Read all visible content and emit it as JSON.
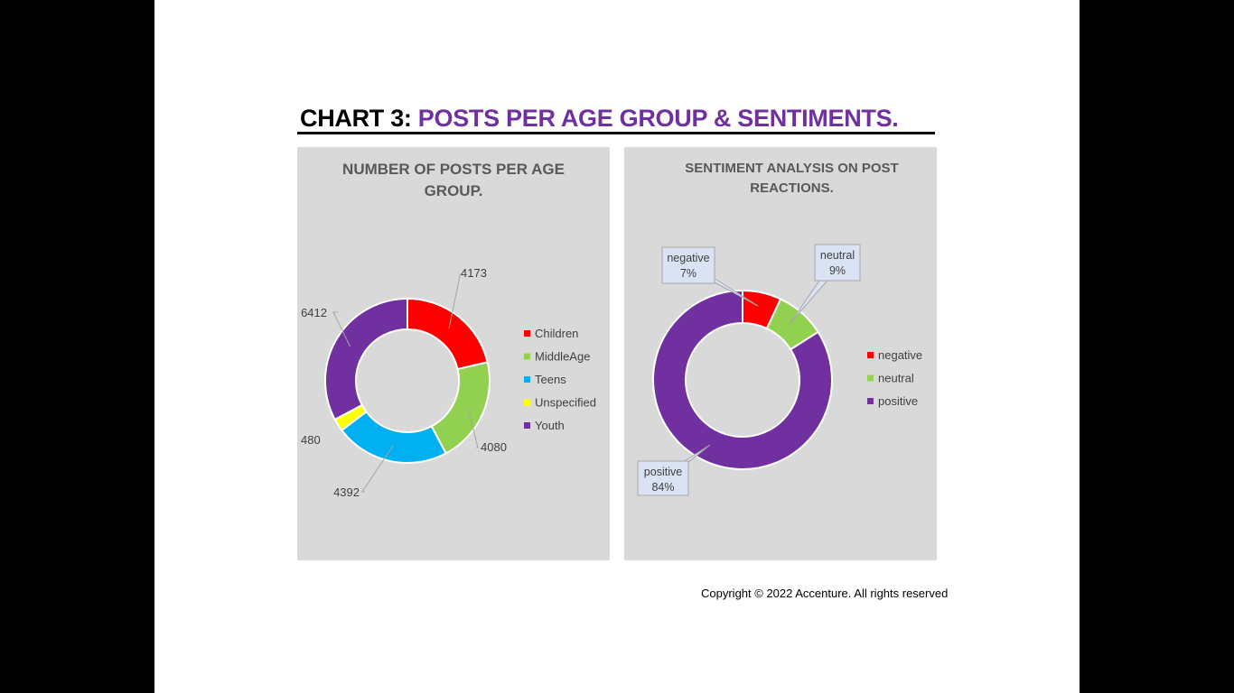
{
  "slide": {
    "title_prefix": "CHART 3:",
    "title_accent": " POSTS PER AGE GROUP & SENTIMENTS.",
    "copyright": "Copyright © 2022 Accenture.  All rights reserved"
  },
  "colors": {
    "title_accent": "#7030a0",
    "panel_bg": "#d9d9d9",
    "children": "#ff0000",
    "middleage": "#92d050",
    "teens": "#00b0f0",
    "unspecified": "#ffff00",
    "youth": "#7030a0"
  },
  "chart_data": [
    {
      "type": "pie",
      "variant": "donut",
      "title": "NUMBER OF POSTS PER AGE GROUP.",
      "categories": [
        "Children",
        "MiddleAge",
        "Teens",
        "Unspecified",
        "Youth"
      ],
      "values": [
        4173,
        4080,
        4392,
        480,
        6412
      ],
      "labels": [
        "4173",
        "4080",
        "4392",
        "480",
        "6412"
      ],
      "colors": [
        "#ff0000",
        "#92d050",
        "#00b0f0",
        "#ffff00",
        "#7030a0"
      ],
      "legend": "right"
    },
    {
      "type": "pie",
      "variant": "donut",
      "title": "SENTIMENT ANALYSIS ON POST REACTIONS.",
      "categories": [
        "negative",
        "neutral",
        "positive"
      ],
      "values": [
        7,
        9,
        84
      ],
      "labels": [
        "7%",
        "9%",
        "84%"
      ],
      "colors": [
        "#ff0000",
        "#92d050",
        "#7030a0"
      ],
      "legend": "right"
    }
  ]
}
